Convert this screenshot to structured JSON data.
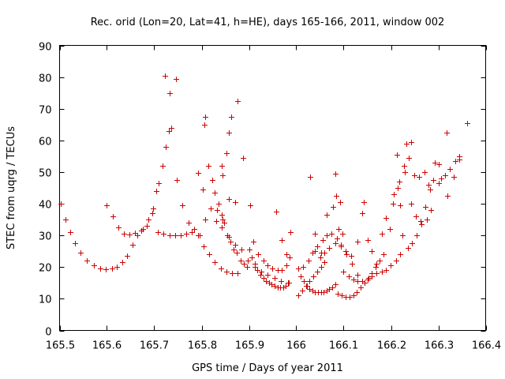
{
  "chart_data": {
    "type": "scatter",
    "title": "Rec. orid (Lon=20, Lat=41, h=HE), days 165-166, 2011, window 002",
    "xlabel": "GPS time / Days of year 2011",
    "ylabel": "STEC from uqrg / TECUs",
    "xlim": [
      165.5,
      166.4
    ],
    "ylim": [
      0,
      90
    ],
    "xticks": [
      "165.5",
      "165.6",
      "165.7",
      "165.8",
      "165.9",
      "166",
      "166.1",
      "166.2",
      "166.3",
      "166.4"
    ],
    "yticks": [
      "0",
      "10",
      "20",
      "30",
      "40",
      "50",
      "60",
      "70",
      "80",
      "90"
    ],
    "grid": false,
    "marker": "+",
    "color": "#cc0000",
    "points": [
      [
        165.503,
        40.0
      ],
      [
        165.512,
        35.0
      ],
      [
        165.522,
        31.0
      ],
      [
        165.533,
        27.5
      ],
      [
        165.545,
        24.5
      ],
      [
        165.558,
        22.0
      ],
      [
        165.572,
        20.5
      ],
      [
        165.585,
        19.5
      ],
      [
        165.598,
        19.3
      ],
      [
        165.61,
        19.5
      ],
      [
        165.621,
        20.0
      ],
      [
        165.632,
        21.5
      ],
      [
        165.643,
        23.5
      ],
      [
        165.654,
        27.0
      ],
      [
        165.665,
        30.0
      ],
      [
        165.676,
        32.0
      ],
      [
        165.687,
        35.0
      ],
      [
        165.6,
        39.5
      ],
      [
        165.612,
        36.0
      ],
      [
        165.624,
        32.5
      ],
      [
        165.636,
        30.5
      ],
      [
        165.648,
        30.3
      ],
      [
        165.66,
        30.8
      ],
      [
        165.672,
        31.5
      ],
      [
        165.684,
        33.0
      ],
      [
        165.696,
        37.0
      ],
      [
        165.708,
        31.0
      ],
      [
        165.72,
        30.5
      ],
      [
        165.732,
        30.0
      ],
      [
        165.744,
        30.0
      ],
      [
        165.756,
        30.0
      ],
      [
        165.768,
        30.5
      ],
      [
        165.78,
        31.0
      ],
      [
        165.792,
        30.0
      ],
      [
        165.804,
        26.5
      ],
      [
        165.816,
        24.0
      ],
      [
        165.828,
        21.5
      ],
      [
        165.84,
        19.5
      ],
      [
        165.852,
        18.5
      ],
      [
        165.864,
        18.0
      ],
      [
        165.876,
        18.0
      ],
      [
        165.697,
        38.5
      ],
      [
        165.704,
        44.0
      ],
      [
        165.709,
        46.5
      ],
      [
        165.717,
        52.0
      ],
      [
        165.724,
        58.0
      ],
      [
        165.731,
        63.0
      ],
      [
        165.735,
        64.0
      ],
      [
        165.723,
        80.5
      ],
      [
        165.733,
        75.0
      ],
      [
        165.745,
        79.5
      ],
      [
        165.748,
        47.5
      ],
      [
        165.76,
        39.5
      ],
      [
        165.772,
        34.0
      ],
      [
        165.784,
        32.0
      ],
      [
        165.796,
        30.0
      ],
      [
        165.792,
        49.8
      ],
      [
        165.802,
        44.5
      ],
      [
        165.808,
        67.5
      ],
      [
        165.805,
        65.0
      ],
      [
        165.815,
        52.0
      ],
      [
        165.822,
        47.5
      ],
      [
        165.828,
        43.5
      ],
      [
        165.835,
        40.0
      ],
      [
        165.842,
        36.5
      ],
      [
        165.848,
        34.0
      ],
      [
        165.854,
        30.0
      ],
      [
        165.86,
        28.0
      ],
      [
        165.867,
        25.5
      ],
      [
        165.874,
        24.5
      ],
      [
        165.882,
        22.0
      ],
      [
        165.889,
        21.0
      ],
      [
        165.896,
        20.0
      ],
      [
        165.83,
        34.5
      ],
      [
        165.843,
        32.5
      ],
      [
        165.857,
        29.5
      ],
      [
        165.87,
        27.0
      ],
      [
        165.884,
        25.5
      ],
      [
        165.898,
        22.0
      ],
      [
        165.912,
        20.0
      ],
      [
        165.926,
        18.5
      ],
      [
        165.94,
        17.5
      ],
      [
        165.954,
        16.5
      ],
      [
        165.968,
        15.5
      ],
      [
        165.982,
        15.0
      ],
      [
        165.842,
        52.0
      ],
      [
        165.845,
        49.0
      ],
      [
        165.852,
        56.0
      ],
      [
        165.858,
        62.5
      ],
      [
        165.862,
        67.5
      ],
      [
        165.876,
        72.5
      ],
      [
        165.888,
        54.5
      ],
      [
        165.902,
        39.5
      ],
      [
        165.808,
        35.0
      ],
      [
        165.82,
        38.5
      ],
      [
        165.832,
        38.0
      ],
      [
        165.845,
        35.0
      ],
      [
        165.858,
        41.5
      ],
      [
        165.87,
        40.5
      ],
      [
        165.9,
        25.5
      ],
      [
        165.906,
        23.0
      ],
      [
        165.912,
        21.0
      ],
      [
        165.918,
        19.0
      ],
      [
        165.924,
        17.5
      ],
      [
        165.93,
        16.5
      ],
      [
        165.936,
        15.5
      ],
      [
        165.942,
        15.0
      ],
      [
        165.948,
        14.5
      ],
      [
        165.954,
        14.0
      ],
      [
        165.96,
        13.5
      ],
      [
        165.966,
        13.5
      ],
      [
        165.972,
        13.5
      ],
      [
        165.978,
        14.0
      ],
      [
        165.984,
        15.0
      ],
      [
        165.91,
        28.0
      ],
      [
        165.92,
        24.0
      ],
      [
        165.93,
        22.0
      ],
      [
        165.94,
        20.5
      ],
      [
        165.95,
        19.5
      ],
      [
        165.96,
        19.0
      ],
      [
        165.97,
        19.0
      ],
      [
        165.98,
        20.5
      ],
      [
        165.958,
        37.5
      ],
      [
        165.97,
        28.5
      ],
      [
        165.98,
        24.0
      ],
      [
        165.988,
        31.0
      ],
      [
        165.985,
        23.0
      ],
      [
        166.005,
        19.5
      ],
      [
        166.01,
        17.0
      ],
      [
        166.016,
        15.5
      ],
      [
        166.022,
        14.0
      ],
      [
        166.028,
        13.0
      ],
      [
        166.034,
        12.5
      ],
      [
        166.04,
        12.0
      ],
      [
        166.046,
        12.0
      ],
      [
        166.052,
        12.0
      ],
      [
        166.058,
        12.0
      ],
      [
        166.064,
        12.5
      ],
      [
        166.07,
        13.0
      ],
      [
        166.076,
        13.5
      ],
      [
        166.082,
        14.5
      ],
      [
        166.004,
        11.0
      ],
      [
        166.012,
        12.5
      ],
      [
        166.02,
        14.0
      ],
      [
        166.028,
        15.5
      ],
      [
        166.036,
        17.0
      ],
      [
        166.044,
        18.5
      ],
      [
        166.052,
        20.0
      ],
      [
        166.06,
        21.5
      ],
      [
        166.015,
        20.0
      ],
      [
        166.025,
        22.0
      ],
      [
        166.035,
        24.5
      ],
      [
        166.045,
        26.5
      ],
      [
        166.055,
        28.5
      ],
      [
        166.065,
        30.0
      ],
      [
        166.075,
        30.5
      ],
      [
        166.085,
        29.0
      ],
      [
        166.095,
        27.0
      ],
      [
        166.105,
        25.0
      ],
      [
        166.115,
        23.5
      ],
      [
        166.03,
        48.5
      ],
      [
        166.04,
        30.5
      ],
      [
        166.052,
        24.5
      ],
      [
        166.065,
        36.5
      ],
      [
        166.077,
        39.0
      ],
      [
        166.084,
        42.5
      ],
      [
        166.082,
        49.5
      ],
      [
        166.093,
        40.5
      ],
      [
        166.09,
        32.0
      ],
      [
        166.098,
        30.5
      ],
      [
        166.088,
        11.5
      ],
      [
        166.096,
        11.0
      ],
      [
        166.104,
        10.5
      ],
      [
        166.112,
        10.5
      ],
      [
        166.12,
        11.0
      ],
      [
        166.128,
        12.0
      ],
      [
        166.136,
        13.5
      ],
      [
        166.144,
        15.0
      ],
      [
        166.152,
        16.5
      ],
      [
        166.16,
        18.0
      ],
      [
        166.168,
        20.0
      ],
      [
        166.176,
        22.0
      ],
      [
        166.184,
        24.0
      ],
      [
        166.1,
        18.5
      ],
      [
        166.11,
        17.0
      ],
      [
        166.12,
        16.0
      ],
      [
        166.13,
        15.5
      ],
      [
        166.14,
        15.5
      ],
      [
        166.15,
        16.0
      ],
      [
        166.16,
        17.0
      ],
      [
        166.17,
        18.0
      ],
      [
        166.18,
        18.5
      ],
      [
        166.19,
        19.0
      ],
      [
        166.2,
        20.5
      ],
      [
        166.21,
        22.0
      ],
      [
        166.22,
        24.0
      ],
      [
        166.13,
        28.0
      ],
      [
        166.14,
        37.0
      ],
      [
        166.142,
        40.5
      ],
      [
        166.15,
        28.5
      ],
      [
        166.16,
        25.0
      ],
      [
        166.17,
        21.0
      ],
      [
        166.18,
        30.5
      ],
      [
        166.19,
        35.5
      ],
      [
        166.198,
        32.0
      ],
      [
        166.204,
        40.0
      ],
      [
        166.206,
        43.0
      ],
      [
        166.214,
        45.0
      ],
      [
        166.22,
        39.5
      ],
      [
        166.212,
        55.5
      ],
      [
        166.218,
        47.0
      ],
      [
        166.228,
        52.0
      ],
      [
        166.23,
        50.0
      ],
      [
        166.238,
        54.5
      ],
      [
        166.232,
        59.0
      ],
      [
        166.242,
        59.5
      ],
      [
        166.25,
        49.0
      ],
      [
        166.26,
        48.5
      ],
      [
        166.27,
        50.0
      ],
      [
        166.28,
        46.0
      ],
      [
        166.29,
        47.5
      ],
      [
        166.3,
        46.5
      ],
      [
        166.315,
        49.0
      ],
      [
        166.325,
        51.0
      ],
      [
        166.335,
        53.5
      ],
      [
        166.345,
        55.0
      ],
      [
        166.225,
        30.0
      ],
      [
        166.235,
        26.0
      ],
      [
        166.245,
        27.5
      ],
      [
        166.255,
        30.0
      ],
      [
        166.265,
        33.5
      ],
      [
        166.275,
        35.0
      ],
      [
        166.285,
        38.0
      ],
      [
        166.292,
        53.0
      ],
      [
        166.3,
        52.5
      ],
      [
        166.305,
        48.0
      ],
      [
        166.318,
        62.5
      ],
      [
        166.32,
        42.5
      ],
      [
        166.332,
        48.5
      ],
      [
        166.345,
        54.0
      ],
      [
        166.36,
        65.5
      ],
      [
        166.04,
        25.0
      ],
      [
        166.05,
        23.0
      ],
      [
        166.06,
        24.5
      ],
      [
        166.07,
        26.0
      ],
      [
        166.082,
        27.5
      ],
      [
        166.094,
        26.5
      ],
      [
        166.106,
        24.0
      ],
      [
        166.118,
        21.0
      ],
      [
        166.13,
        17.5
      ],
      [
        166.242,
        40.0
      ],
      [
        166.252,
        36.0
      ],
      [
        166.262,
        34.5
      ],
      [
        166.272,
        39.0
      ],
      [
        166.282,
        44.5
      ]
    ]
  }
}
